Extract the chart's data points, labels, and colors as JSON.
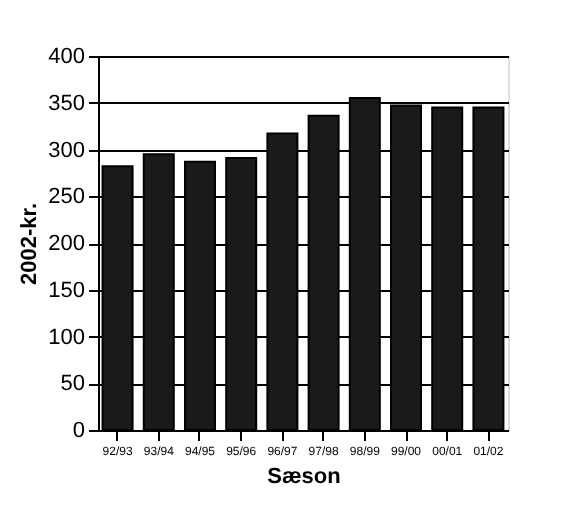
{
  "chart_data": {
    "type": "bar",
    "xlabel": "Sæson",
    "ylabel": "2002-kr.",
    "categories": [
      "92/93",
      "93/94",
      "94/95",
      "95/96",
      "96/97",
      "97/98",
      "98/99",
      "99/00",
      "00/01",
      "01/02"
    ],
    "values": [
      282,
      295,
      287,
      291,
      317,
      336,
      355,
      347,
      345,
      345
    ],
    "color": "#1a1a1a",
    "ylim": [
      0,
      400
    ],
    "yticks": [
      0,
      50,
      100,
      150,
      200,
      250,
      300,
      350,
      400
    ],
    "grid": "y"
  }
}
